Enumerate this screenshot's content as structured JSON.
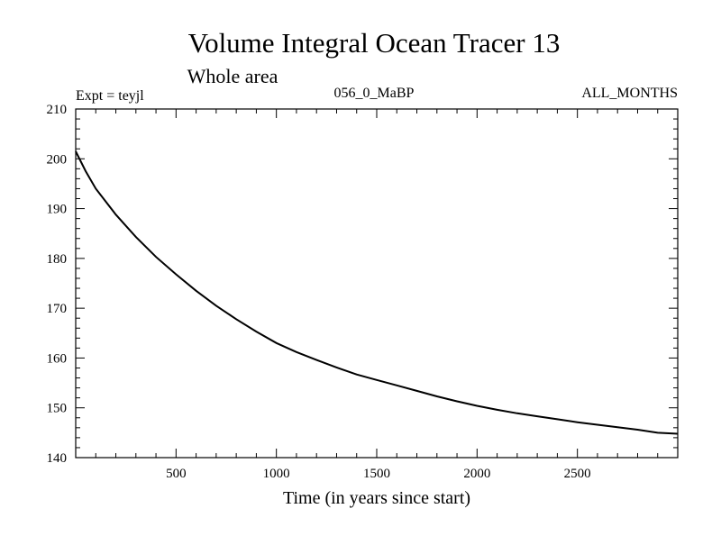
{
  "chart_data": {
    "type": "line",
    "title": "Volume Integral Ocean Tracer 13",
    "subtitle": "Whole area",
    "experiment_label": "Expt = teyjl",
    "run_label": "056_0_MaBP",
    "months_label": "ALL_MONTHS",
    "xlabel": "Time (in years since start)",
    "ylabel": "",
    "xlim": [
      0,
      3000
    ],
    "ylim": [
      140,
      210
    ],
    "x_ticks": [
      500,
      1000,
      1500,
      2000,
      2500
    ],
    "y_ticks": [
      140,
      150,
      160,
      170,
      180,
      190,
      200,
      210
    ],
    "grid": false,
    "series": [
      {
        "x": [
          0,
          50,
          100,
          200,
          300,
          400,
          500,
          600,
          700,
          800,
          900,
          1000,
          1100,
          1200,
          1300,
          1400,
          1500,
          1600,
          1700,
          1800,
          1900,
          2000,
          2100,
          2200,
          2300,
          2400,
          2500,
          2600,
          2700,
          2800,
          2900,
          3000
        ],
        "values": [
          201.5,
          197.5,
          194.0,
          188.8,
          184.3,
          180.3,
          176.8,
          173.5,
          170.5,
          167.8,
          165.3,
          163.0,
          161.2,
          159.6,
          158.1,
          156.7,
          155.6,
          154.5,
          153.4,
          152.3,
          151.3,
          150.4,
          149.6,
          148.9,
          148.3,
          147.7,
          147.1,
          146.6,
          146.1,
          145.6,
          145.0,
          144.8
        ]
      }
    ]
  }
}
